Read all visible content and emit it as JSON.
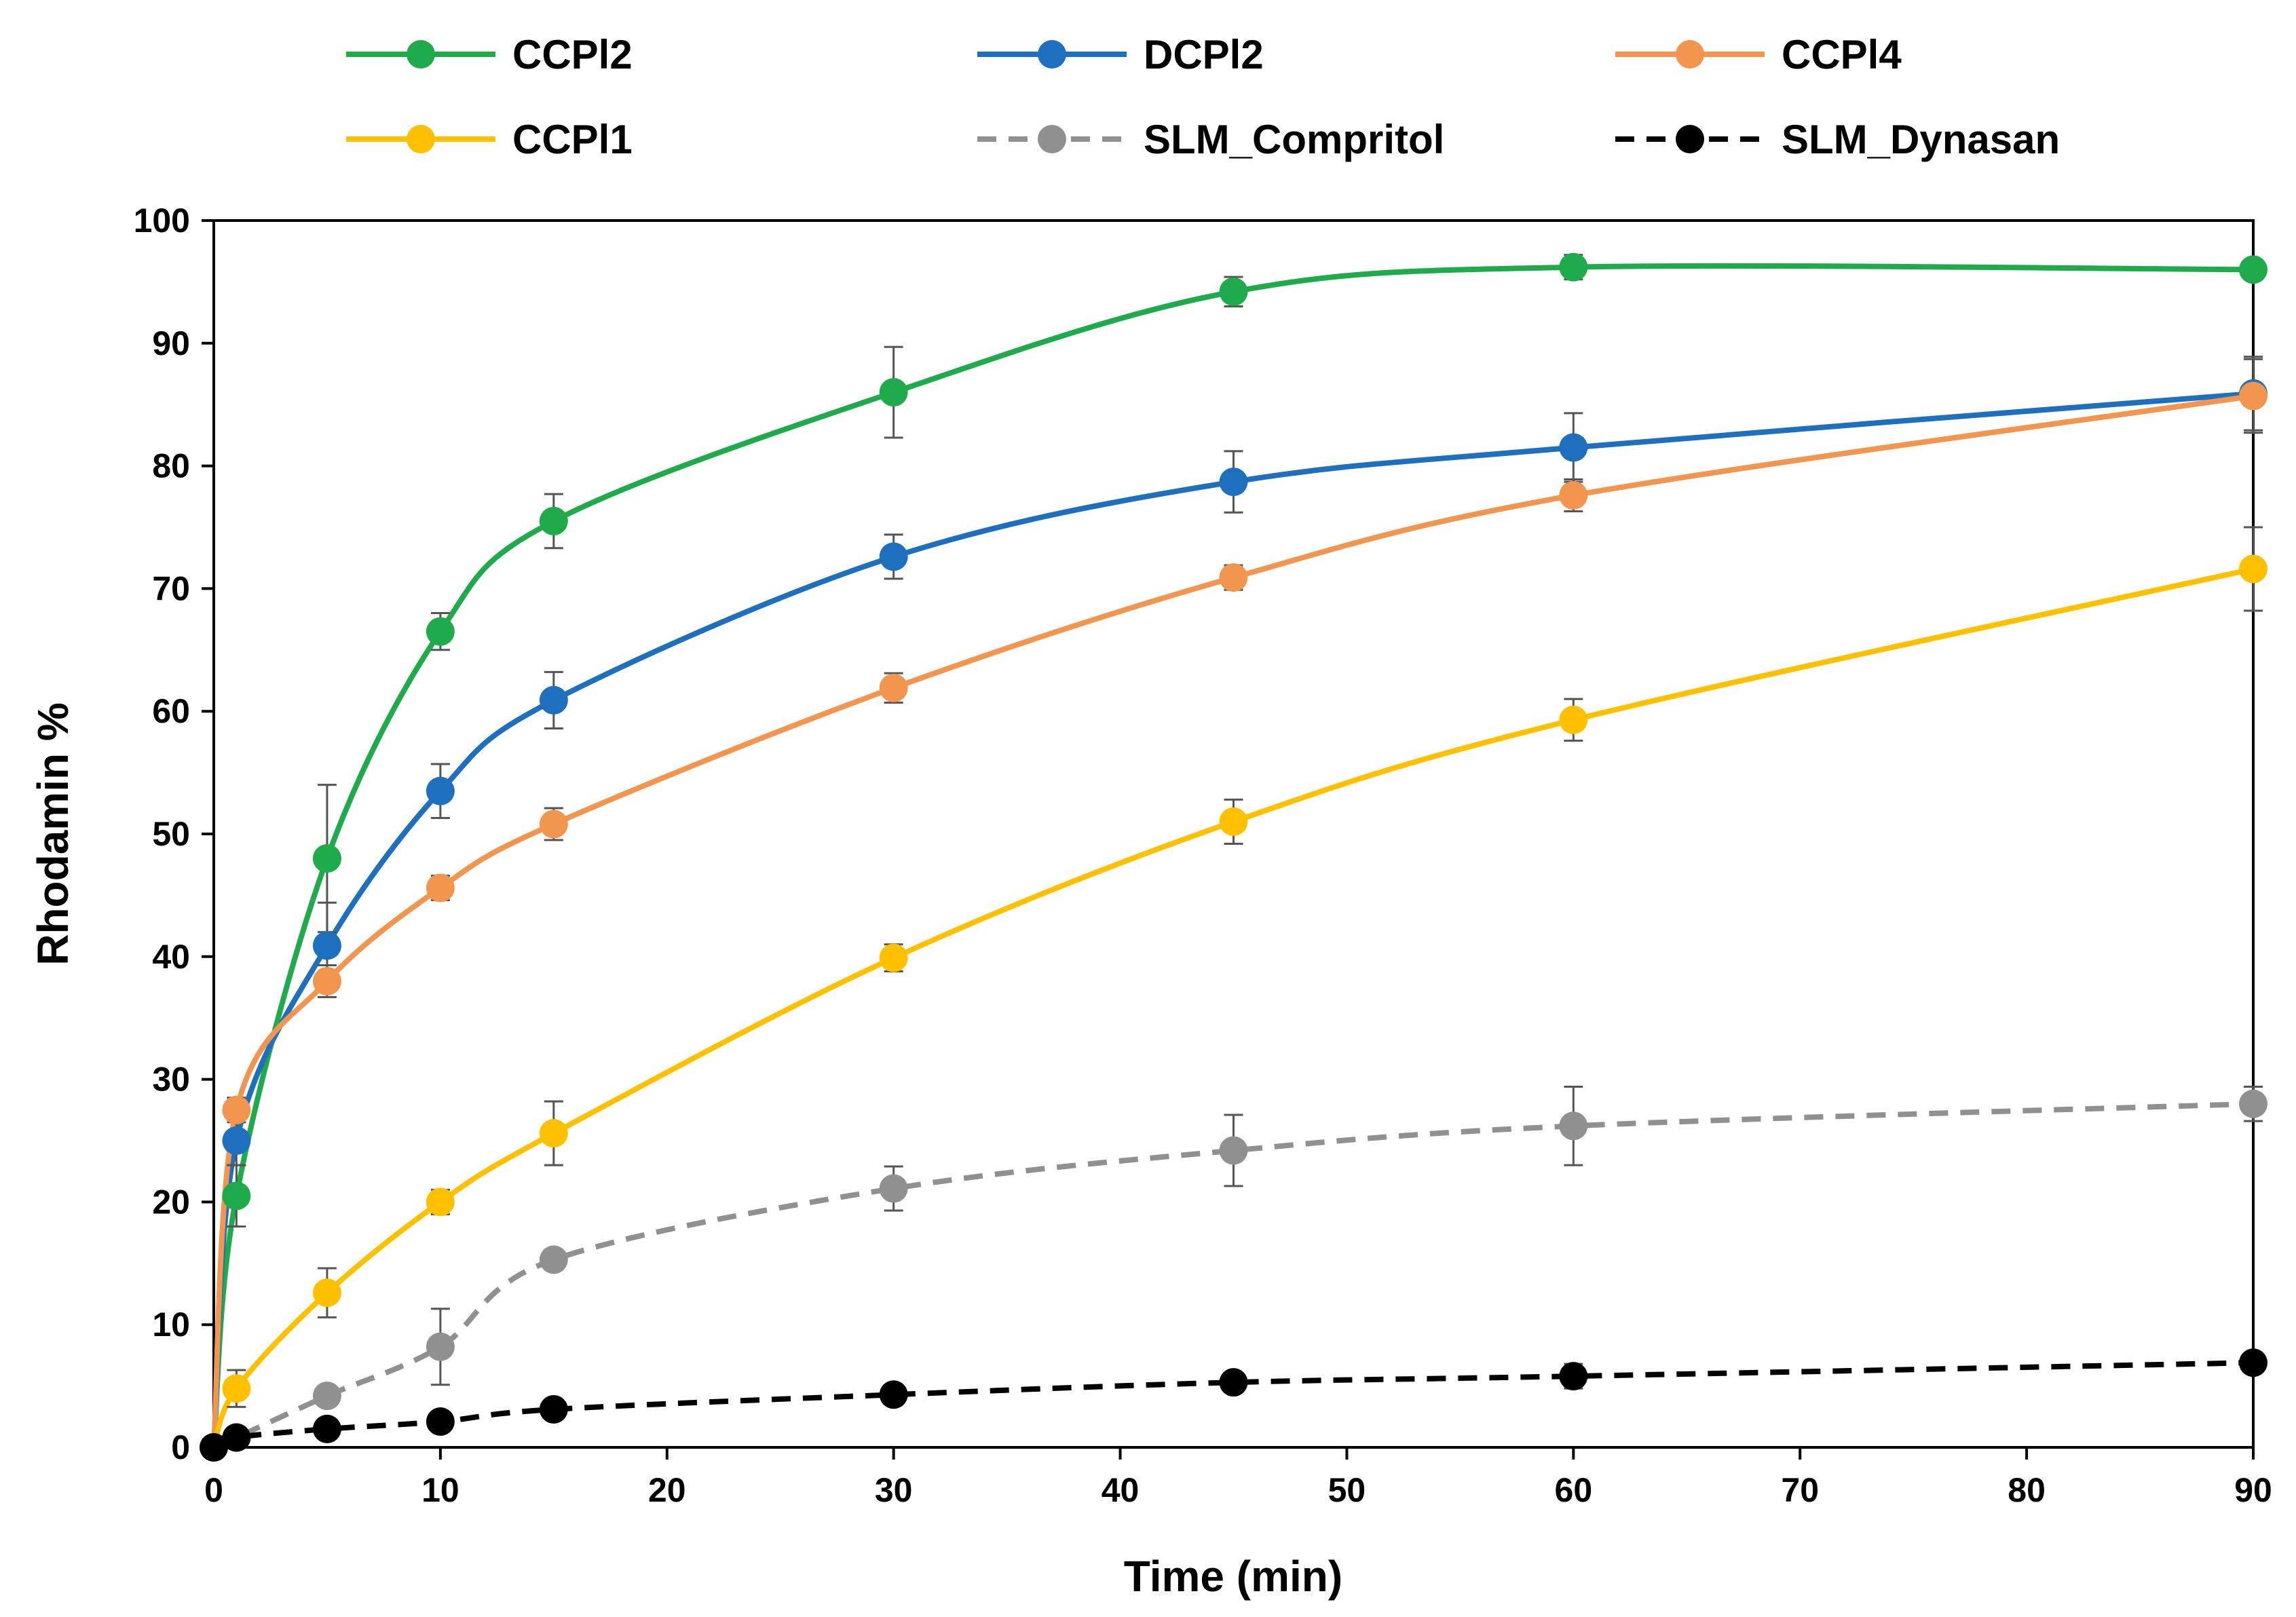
{
  "chart_data": {
    "type": "line",
    "title": "",
    "xlabel": "Time (min)",
    "ylabel": "Rhodamin %",
    "xlim": [
      0,
      90
    ],
    "ylim": [
      0,
      100
    ],
    "xticks": [
      0,
      10,
      20,
      30,
      40,
      50,
      60,
      70,
      80,
      90
    ],
    "yticks": [
      0,
      10,
      20,
      30,
      40,
      50,
      60,
      70,
      80,
      90,
      100
    ],
    "grid": false,
    "legend_position": "top",
    "x": [
      0,
      1,
      5,
      10,
      15,
      30,
      45,
      60,
      90
    ],
    "series": [
      {
        "name": "CCPl2",
        "color": "#1faa4b",
        "dashed": false,
        "values": [
          0,
          20.5,
          48.0,
          66.5,
          75.5,
          86.0,
          94.2,
          96.2,
          96.0
        ],
        "errors": [
          0,
          2.5,
          6.0,
          1.5,
          2.2,
          3.7,
          1.2,
          1.0,
          0.6
        ]
      },
      {
        "name": "DCPl2",
        "color": "#1f6fbf",
        "dashed": false,
        "values": [
          0,
          25.0,
          40.9,
          53.5,
          60.9,
          72.6,
          78.7,
          81.5,
          85.9
        ],
        "errors": [
          0,
          2.0,
          3.5,
          2.2,
          2.3,
          1.8,
          2.5,
          2.8,
          3.0
        ]
      },
      {
        "name": "CCPl4",
        "color": "#f2954f",
        "dashed": false,
        "values": [
          0,
          27.5,
          38.0,
          45.6,
          50.8,
          61.9,
          70.9,
          77.6,
          85.7
        ],
        "errors": [
          0,
          1.0,
          1.3,
          1.0,
          1.3,
          1.2,
          1.0,
          1.3,
          3.0
        ]
      },
      {
        "name": "CCPl1",
        "color": "#ffc000",
        "dashed": false,
        "values": [
          0,
          4.8,
          12.6,
          20.0,
          25.6,
          39.9,
          51.0,
          59.3,
          71.6
        ],
        "errors": [
          0,
          1.5,
          2.0,
          1.0,
          2.6,
          1.1,
          1.8,
          1.7,
          3.4
        ]
      },
      {
        "name": "SLM_Compritol",
        "color": "#909090",
        "dashed": true,
        "values": [
          0,
          0.8,
          4.2,
          8.2,
          15.3,
          21.1,
          24.2,
          26.2,
          28.0
        ],
        "errors": [
          0,
          0.5,
          0.8,
          3.1,
          0.8,
          1.8,
          2.9,
          3.2,
          1.4
        ]
      },
      {
        "name": "SLM_Dynasan",
        "color": "#000000",
        "dashed": true,
        "values": [
          0,
          0.8,
          1.5,
          2.1,
          3.1,
          4.3,
          5.3,
          5.8,
          6.9
        ],
        "errors": [
          0,
          0.3,
          0.5,
          0.4,
          0.5,
          0.7,
          0.5,
          1.0,
          0.7
        ]
      }
    ]
  }
}
